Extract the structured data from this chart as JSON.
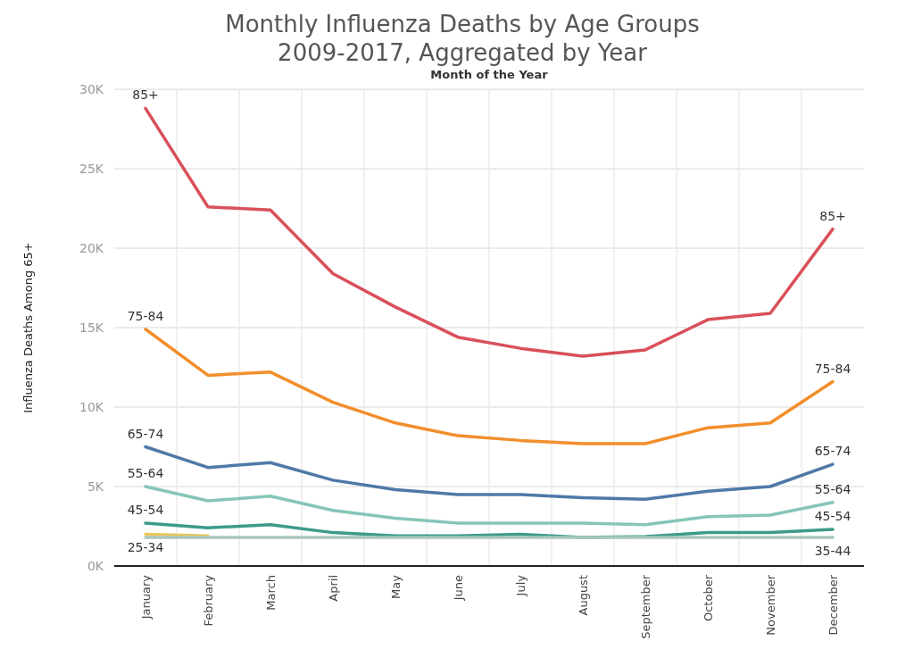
{
  "chart_data": {
    "type": "line",
    "title": "Monthly Influenza Deaths by Age Groups\n2009-2017, Aggregated by Year",
    "xlabel": "Month of the Year",
    "ylabel": "Influenza Deaths Among 65+",
    "categories": [
      "January",
      "February",
      "March",
      "April",
      "May",
      "June",
      "July",
      "August",
      "September",
      "October",
      "November",
      "December"
    ],
    "ylim": [
      0,
      30000
    ],
    "yticks": [
      {
        "value": 0,
        "label": "0K"
      },
      {
        "value": 5000,
        "label": "5K"
      },
      {
        "value": 10000,
        "label": "10K"
      },
      {
        "value": 15000,
        "label": "15K"
      },
      {
        "value": 20000,
        "label": "20K"
      },
      {
        "value": 25000,
        "label": "25K"
      },
      {
        "value": 30000,
        "label": "30K"
      }
    ],
    "grid": true,
    "marker": "none",
    "line_style": "solid",
    "series": [
      {
        "name": "85+",
        "color": "#d9505a",
        "values": [
          28800,
          22600,
          22400,
          18400,
          16300,
          14400,
          13700,
          13200,
          13600,
          15500,
          15900,
          21200
        ]
      },
      {
        "name": "75-84",
        "color": "#f28e2b",
        "values": [
          14900,
          12000,
          12200,
          10300,
          9000,
          8200,
          7900,
          7700,
          7700,
          8700,
          9000,
          11600
        ]
      },
      {
        "name": "65-74",
        "color": "#4e79a7",
        "values": [
          7500,
          6200,
          6500,
          5400,
          4800,
          4500,
          4500,
          4300,
          4200,
          4700,
          5000,
          6400
        ]
      },
      {
        "name": "55-64",
        "color": "#86c5b8",
        "values": [
          5000,
          4100,
          4400,
          3500,
          3000,
          2700,
          2700,
          2700,
          2600,
          3100,
          3200,
          4000
        ]
      },
      {
        "name": "45-54",
        "color": "#3d9a8b",
        "values": [
          2700,
          2400,
          2600,
          2100,
          1900,
          1900,
          2000,
          1800,
          1850,
          2100,
          2100,
          2300
        ]
      },
      {
        "name": "25-34",
        "color": "#eac65c",
        "values": [
          2000,
          1900,
          null,
          null,
          null,
          null,
          null,
          null,
          null,
          null,
          null,
          null
        ]
      },
      {
        "name": "35-44",
        "color": "#a9c6c0",
        "values": [
          1800,
          1800,
          1800,
          1800,
          1800,
          1800,
          1800,
          1800,
          1800,
          1800,
          1800,
          1800
        ]
      }
    ]
  }
}
